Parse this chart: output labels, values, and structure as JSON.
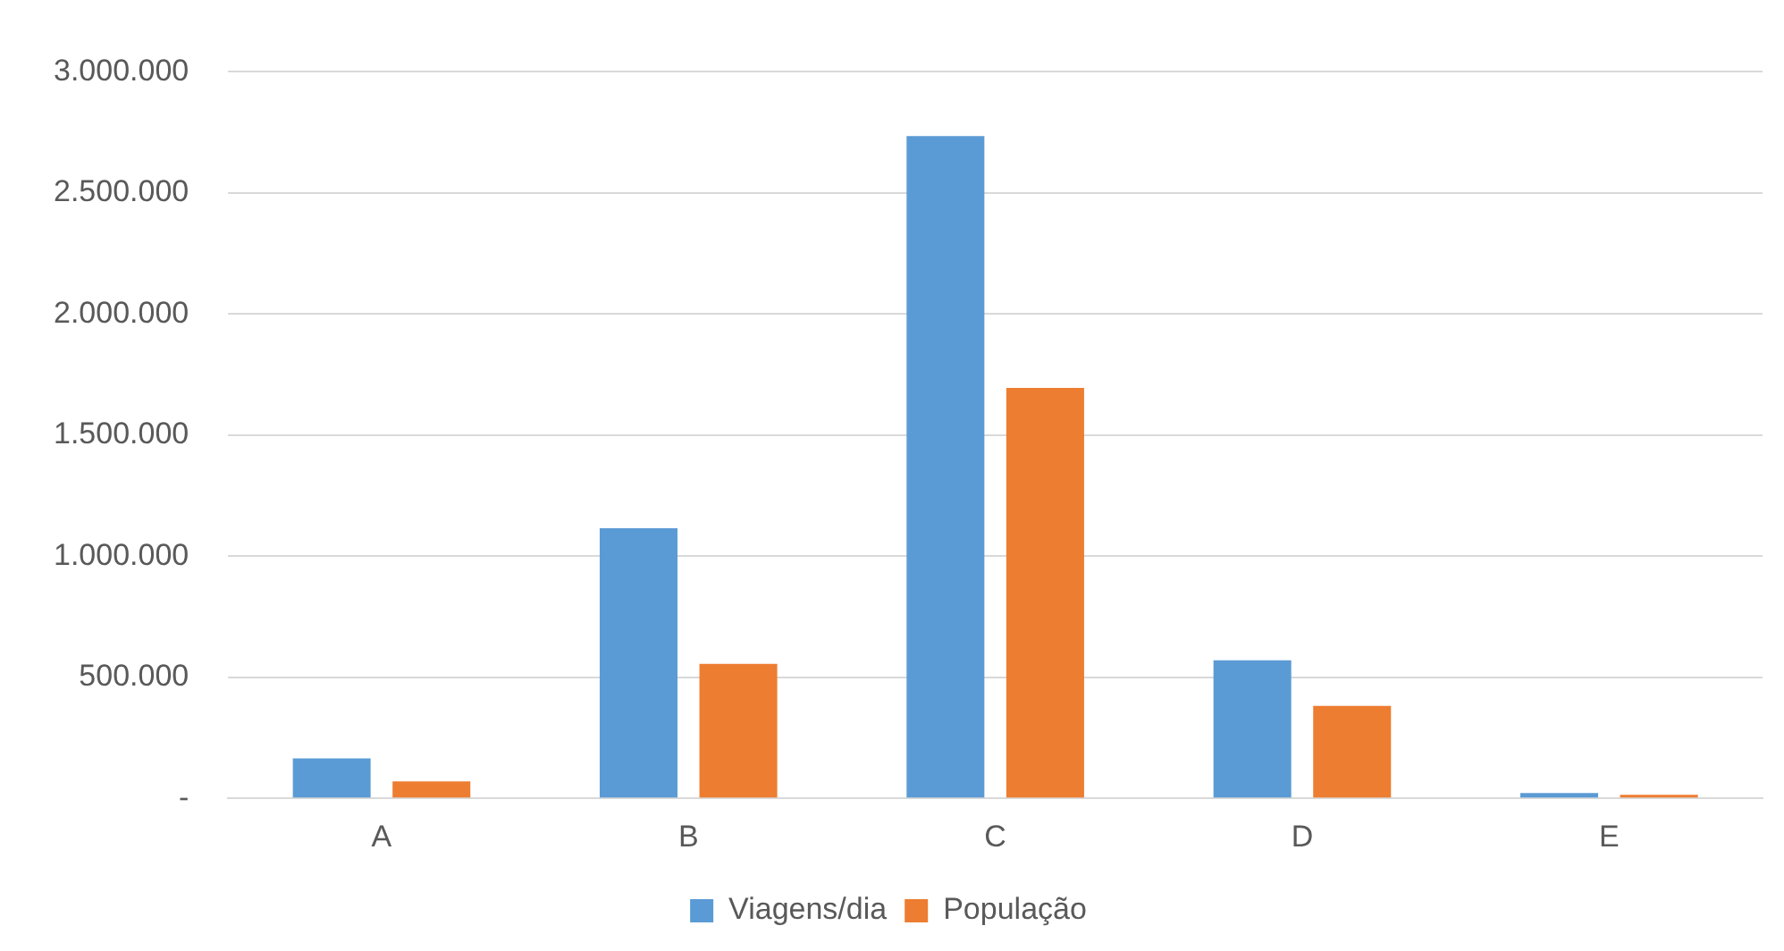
{
  "chart_data": {
    "type": "bar",
    "categories": [
      "A",
      "B",
      "C",
      "D",
      "E"
    ],
    "series": [
      {
        "name": "Viagens/dia",
        "color": "#5b9bd5",
        "values": [
          165000,
          1115000,
          2735000,
          570000,
          22000
        ]
      },
      {
        "name": "População",
        "color": "#ed7d31",
        "values": [
          70000,
          555000,
          1695000,
          382000,
          15000
        ]
      }
    ],
    "ylim": [
      0,
      3000000
    ],
    "yticks": [
      {
        "value": 0,
        "label": "-"
      },
      {
        "value": 500000,
        "label": "500.000"
      },
      {
        "value": 1000000,
        "label": "1.000.000"
      },
      {
        "value": 1500000,
        "label": "1.500.000"
      },
      {
        "value": 2000000,
        "label": "2.000.000"
      },
      {
        "value": 2500000,
        "label": "2.500.000"
      },
      {
        "value": 3000000,
        "label": "3.000.000"
      }
    ],
    "grid": "y",
    "legend": "bottom"
  }
}
